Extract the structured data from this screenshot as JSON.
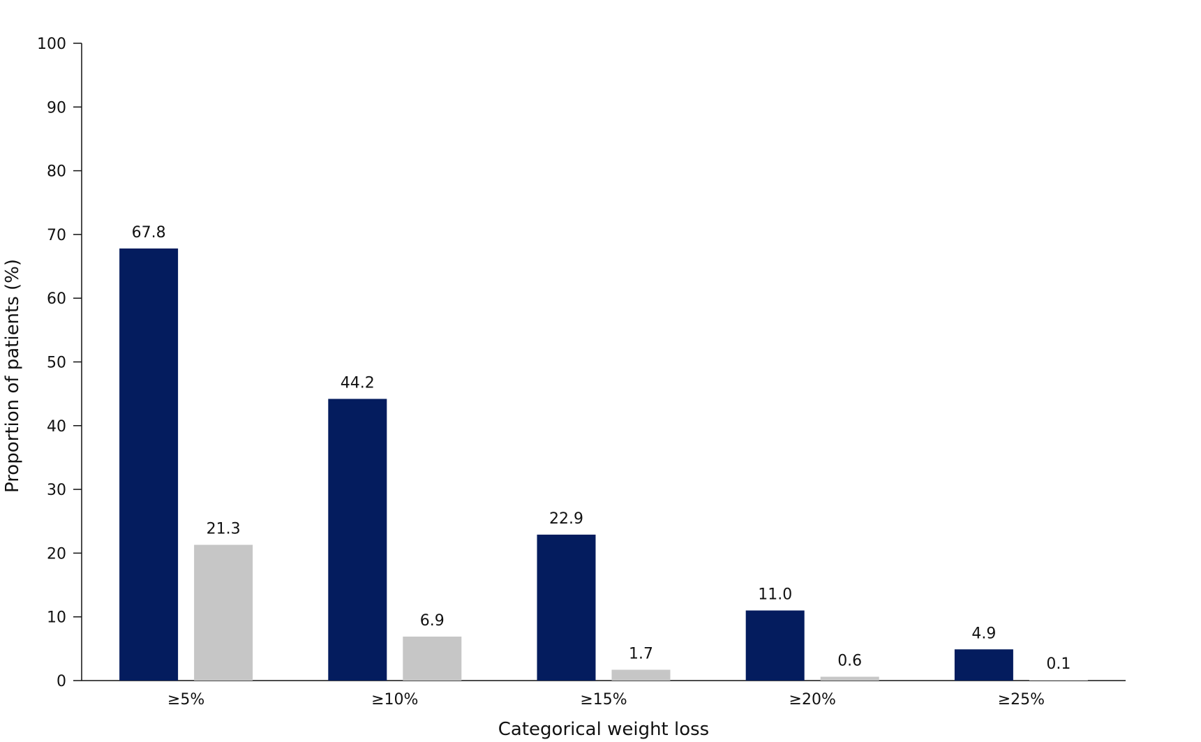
{
  "chart_data": {
    "type": "bar",
    "title": "",
    "xlabel": "Categorical weight loss",
    "ylabel": "Proportion of patients (%)",
    "ylim": [
      0,
      100
    ],
    "yticks": [
      0,
      10,
      20,
      30,
      40,
      50,
      60,
      70,
      80,
      90,
      100
    ],
    "categories": [
      "≥5%",
      "≥10%",
      "≥15%",
      "≥20%",
      "≥25%"
    ],
    "series": [
      {
        "values": [
          67.8,
          44.2,
          22.9,
          11.0,
          4.9
        ],
        "labels": [
          "67.8",
          "44.2",
          "22.9",
          "11.0",
          "4.9"
        ],
        "color": "#041c5e"
      },
      {
        "values": [
          21.3,
          6.9,
          1.7,
          0.6,
          0.1
        ],
        "labels": [
          "21.3",
          "6.9",
          "1.7",
          "0.6",
          "0.1"
        ],
        "color": "#c6c6c6"
      }
    ],
    "grid": false,
    "legend": "none"
  }
}
